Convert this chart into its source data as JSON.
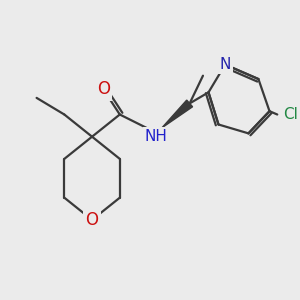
{
  "bg_color": "#ebebeb",
  "bond_color": "#3a3a3a",
  "lw": 1.6,
  "figsize": [
    3.0,
    3.0
  ],
  "dpi": 100,
  "xlim": [
    25,
    295
  ],
  "ylim": [
    285,
    55
  ]
}
